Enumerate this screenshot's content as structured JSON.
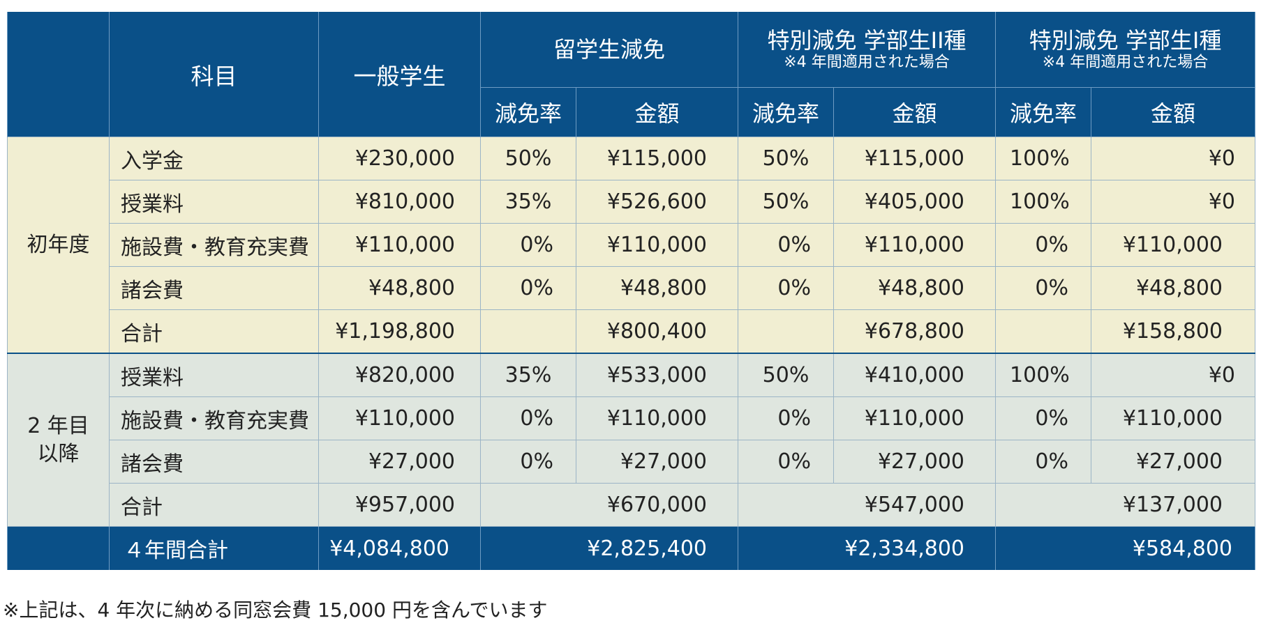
{
  "header": {
    "subject": "科目",
    "general": "一般学生",
    "groups": [
      {
        "title": "留学生減免",
        "note": "",
        "rate_label": "減免率",
        "amount_label": "金額"
      },
      {
        "title": "特別減免 学部生II種",
        "note": "※4 年間適用された場合",
        "rate_label": "減免率",
        "amount_label": "金額"
      },
      {
        "title": "特別減免 学部生I種",
        "note": "※4 年間適用された場合",
        "rate_label": "減免率",
        "amount_label": "金額"
      }
    ]
  },
  "first_year": {
    "label": "初年度",
    "rows": [
      {
        "item": "入学金",
        "general": "¥230,000",
        "c1": [
          "50%",
          "¥115,000"
        ],
        "c2": [
          "50%",
          "¥115,000"
        ],
        "c3": [
          "100%",
          "¥0"
        ]
      },
      {
        "item": "授業料",
        "general": "¥810,000",
        "c1": [
          "35%",
          "¥526,600"
        ],
        "c2": [
          "50%",
          "¥405,000"
        ],
        "c3": [
          "100%",
          "¥0"
        ]
      },
      {
        "item": "施設費・教育充実費",
        "general": "¥110,000",
        "c1": [
          "0%",
          "¥110,000"
        ],
        "c2": [
          "0%",
          "¥110,000"
        ],
        "c3": [
          "0%",
          "¥110,000"
        ]
      },
      {
        "item": "諸会費",
        "general": "¥48,800",
        "c1": [
          "0%",
          "¥48,800"
        ],
        "c2": [
          "0%",
          "¥48,800"
        ],
        "c3": [
          "0%",
          "¥48,800"
        ]
      },
      {
        "item": "合計",
        "general": "¥1,198,800",
        "c1": [
          "",
          "¥800,400"
        ],
        "c2": [
          "",
          "¥678,800"
        ],
        "c3": [
          "",
          "¥158,800"
        ]
      }
    ]
  },
  "later_years": {
    "label_line1": "2 年目",
    "label_line2": "以降",
    "rows": [
      {
        "item": "授業料",
        "general": "¥820,000",
        "c1": [
          "35%",
          "¥533,000"
        ],
        "c2": [
          "50%",
          "¥410,000"
        ],
        "c3": [
          "100%",
          "¥0"
        ]
      },
      {
        "item": "施設費・教育充実費",
        "general": "¥110,000",
        "c1": [
          "0%",
          "¥110,000"
        ],
        "c2": [
          "0%",
          "¥110,000"
        ],
        "c3": [
          "0%",
          "¥110,000"
        ]
      },
      {
        "item": "諸会費",
        "general": "¥27,000",
        "c1": [
          "0%",
          "¥27,000"
        ],
        "c2": [
          "0%",
          "¥27,000"
        ],
        "c3": [
          "0%",
          "¥27,000"
        ]
      },
      {
        "item": "合計",
        "general": "¥957,000",
        "c1": [
          "",
          "¥670,000"
        ],
        "c2": [
          "",
          "¥547,000"
        ],
        "c3": [
          "",
          "¥137,000"
        ]
      }
    ]
  },
  "total": {
    "label": "４年間合計",
    "general": "¥4,084,800",
    "c1": "¥2,825,400",
    "c2": "¥2,334,800",
    "c3": "¥584,800"
  },
  "footnote": "※上記は、4 年次に納める同窓会費 15,000 円を含んでいます",
  "colors": {
    "header_bg": "#0a5088",
    "first_year_bg": "#f1eed2",
    "later_years_bg": "#dfe6df"
  }
}
